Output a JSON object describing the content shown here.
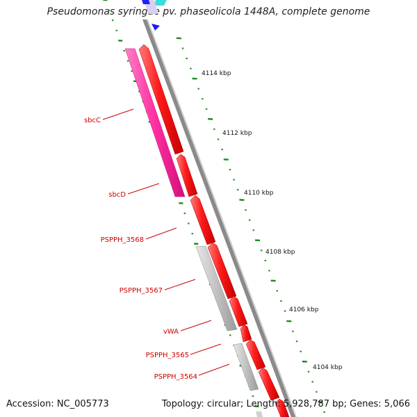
{
  "title": "Pseudomonas syringae pv. phaseolicola 1448A, complete genome",
  "footer": {
    "accession": "Accession: NC_005773",
    "summary": "Topology: circular; Length: 5,928,787 bp; Genes: 5,066"
  },
  "ticks": [
    {
      "label": "4114 kbp"
    },
    {
      "label": "4112 kbp"
    },
    {
      "label": "4110 kbp"
    },
    {
      "label": "4108 kbp"
    },
    {
      "label": "4106 kbp"
    },
    {
      "label": "4104 kbp"
    }
  ],
  "genes": [
    {
      "label": "sbcC"
    },
    {
      "label": "sbcD"
    },
    {
      "label": "PSPPH_3568"
    },
    {
      "label": "PSPPH_3567"
    },
    {
      "label": "vWA"
    },
    {
      "label": "PSPPH_3565"
    },
    {
      "label": "PSPPH_3564"
    }
  ],
  "colors": {
    "cds": "#ff1a1a",
    "rrna_magenta": "#ff2fa0",
    "gray_feature": "#bcbcbc",
    "backbone": "#888888",
    "gc_skew": "#1a8a1a",
    "label": "#cc0000",
    "cyan": "#33dddd",
    "blue": "#1a1aff"
  }
}
